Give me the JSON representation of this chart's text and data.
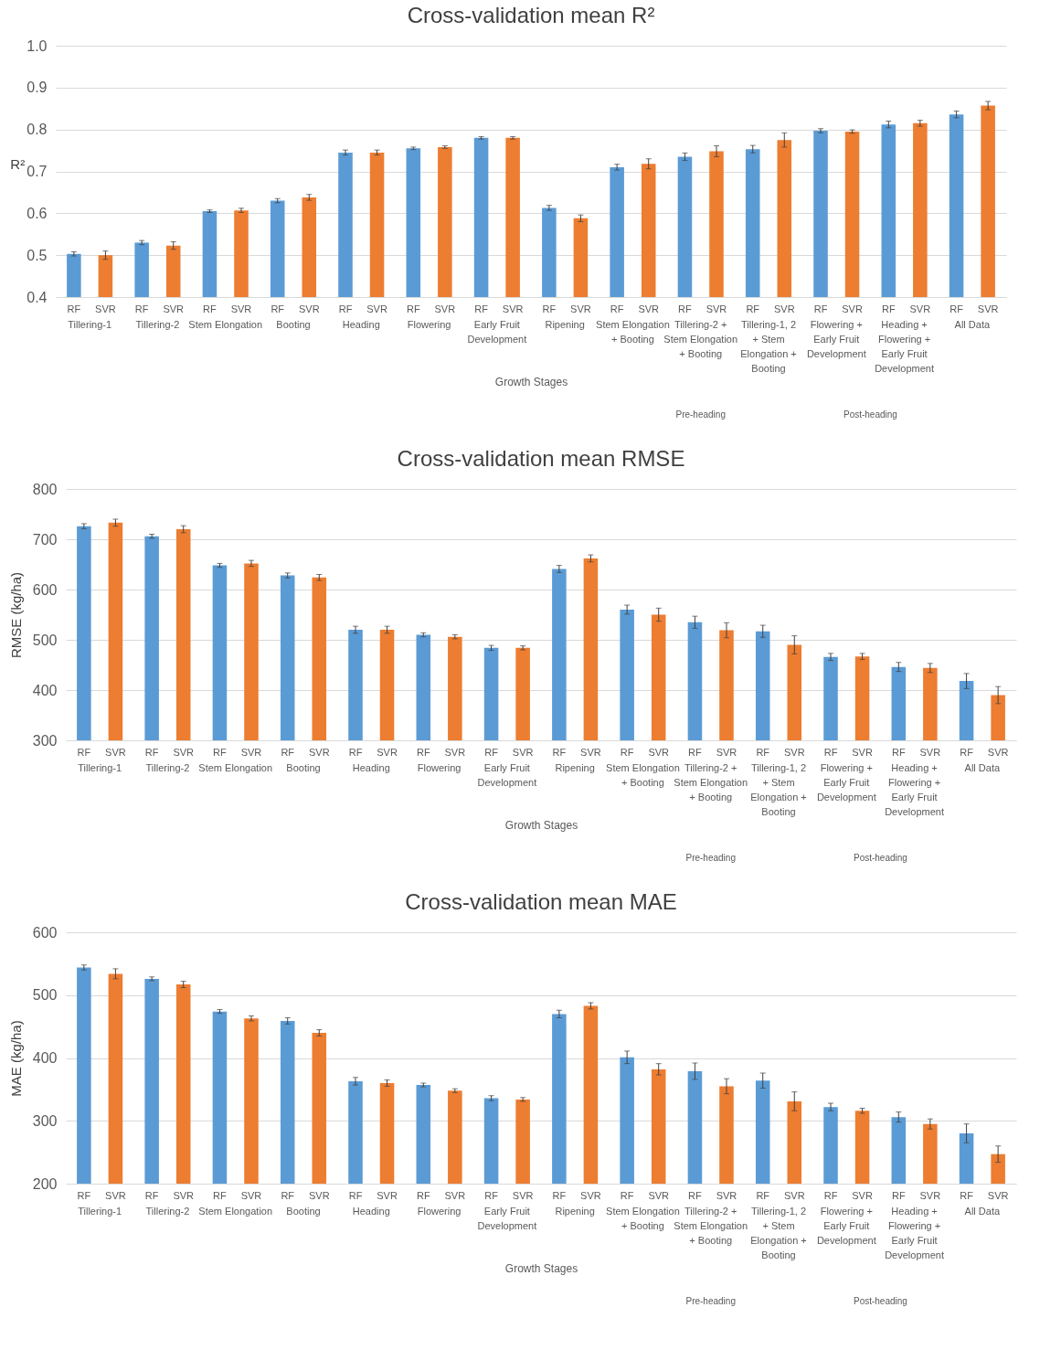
{
  "chart_data": [
    {
      "type": "bar",
      "title": "Cross-validation mean R²",
      "xlabel": "Growth Stages",
      "ylabel": "R²",
      "categories": [
        "Tillering-1",
        "Tillering-2",
        "Stem Elongation",
        "Booting",
        "Heading",
        "Flowering",
        "Early Fruit Development",
        "Ripening",
        "Stem Elongation + Booting",
        "Tillering-2 + Stem Elongation + Booting",
        "Tillering-1, 2 + Stem Elongation + Booting",
        "Flowering + Early Fruit Development",
        "Heading + Flowering + Early Fruit Development",
        "All Data"
      ],
      "series": [
        {
          "name": "RF",
          "color": "#5b9bd5",
          "values": [
            0.503,
            0.53,
            0.605,
            0.63,
            0.745,
            0.755,
            0.78,
            0.613,
            0.71,
            0.735,
            0.753,
            0.797,
            0.812,
            0.836
          ],
          "errors": [
            0.005,
            0.005,
            0.003,
            0.005,
            0.006,
            0.003,
            0.003,
            0.006,
            0.007,
            0.009,
            0.009,
            0.005,
            0.008,
            0.008
          ]
        },
        {
          "name": "SVR",
          "color": "#ed7d31",
          "values": [
            0.5,
            0.523,
            0.607,
            0.638,
            0.745,
            0.758,
            0.78,
            0.588,
            0.718,
            0.748,
            0.775,
            0.795,
            0.815,
            0.857
          ],
          "errors": [
            0.01,
            0.009,
            0.005,
            0.007,
            0.006,
            0.003,
            0.003,
            0.008,
            0.012,
            0.013,
            0.017,
            0.004,
            0.007,
            0.01
          ]
        }
      ],
      "ylim": [
        0.4,
        1.0
      ],
      "yticks": [
        0.4,
        0.5,
        0.6,
        0.7,
        0.8,
        0.9,
        {
          "value": 1,
          "label": "1.0"
        }
      ],
      "grid": "y",
      "annotations": [
        "Pre-heading",
        "Post-heading"
      ]
    },
    {
      "type": "bar",
      "title": "Cross-validation mean RMSE",
      "xlabel": "Growth Stages",
      "ylabel": "RMSE (kg/ha)",
      "categories": [
        "Tillering-1",
        "Tillering-2",
        "Stem Elongation",
        "Booting",
        "Heading",
        "Flowering",
        "Early Fruit Development",
        "Ripening",
        "Stem Elongation + Booting",
        "Tillering-2 + Stem Elongation + Booting",
        "Tillering-1, 2 + Stem Elongation + Booting",
        "Flowering + Early Fruit Development",
        "Heading + Flowering + Early Fruit Development",
        "All Data"
      ],
      "series": [
        {
          "name": "RF",
          "color": "#5b9bd5",
          "values": [
            726,
            706,
            648,
            628,
            520,
            510,
            484,
            641,
            560,
            535,
            517,
            466,
            446,
            418
          ],
          "errors": [
            5,
            4,
            4,
            5,
            7,
            4,
            5,
            7,
            9,
            12,
            12,
            7,
            9,
            15
          ]
        },
        {
          "name": "SVR",
          "color": "#ed7d31",
          "values": [
            733,
            720,
            652,
            624,
            520,
            506,
            484,
            662,
            550,
            519,
            490,
            467,
            444,
            390
          ],
          "errors": [
            7,
            7,
            6,
            6,
            7,
            4,
            4,
            7,
            13,
            15,
            18,
            6,
            9,
            17
          ]
        }
      ],
      "ylim": [
        300,
        800
      ],
      "yticks": [
        300,
        400,
        500,
        600,
        700,
        800
      ],
      "grid": "y",
      "annotations": [
        "Pre-heading",
        "Post-heading"
      ]
    },
    {
      "type": "bar",
      "title": "Cross-validation mean MAE",
      "xlabel": "Growth Stages",
      "ylabel": "MAE (kg/ha)",
      "categories": [
        "Tillering-1",
        "Tillering-2",
        "Stem Elongation",
        "Booting",
        "Heading",
        "Flowering",
        "Early Fruit Development",
        "Ripening",
        "Stem Elongation + Booting",
        "Tillering-2 + Stem Elongation + Booting",
        "Tillering-1, 2 + Stem Elongation + Booting",
        "Flowering + Early Fruit Development",
        "Heading + Flowering + Early Fruit Development",
        "All Data"
      ],
      "series": [
        {
          "name": "RF",
          "color": "#5b9bd5",
          "values": [
            544,
            526,
            474,
            459,
            363,
            357,
            336,
            470,
            401,
            379,
            364,
            322,
            306,
            280
          ],
          "errors": [
            4,
            3,
            3,
            5,
            6,
            3,
            4,
            6,
            10,
            13,
            12,
            6,
            8,
            15
          ]
        },
        {
          "name": "SVR",
          "color": "#ed7d31",
          "values": [
            534,
            517,
            463,
            440,
            360,
            348,
            334,
            483,
            382,
            355,
            331,
            316,
            295,
            247
          ],
          "errors": [
            8,
            5,
            4,
            5,
            5,
            3,
            3,
            5,
            9,
            12,
            15,
            4,
            8,
            13
          ]
        }
      ],
      "ylim": [
        200,
        600
      ],
      "yticks": [
        200,
        300,
        400,
        500,
        600
      ],
      "grid": "y",
      "annotations": [
        "Pre-heading",
        "Post-heading"
      ]
    }
  ]
}
